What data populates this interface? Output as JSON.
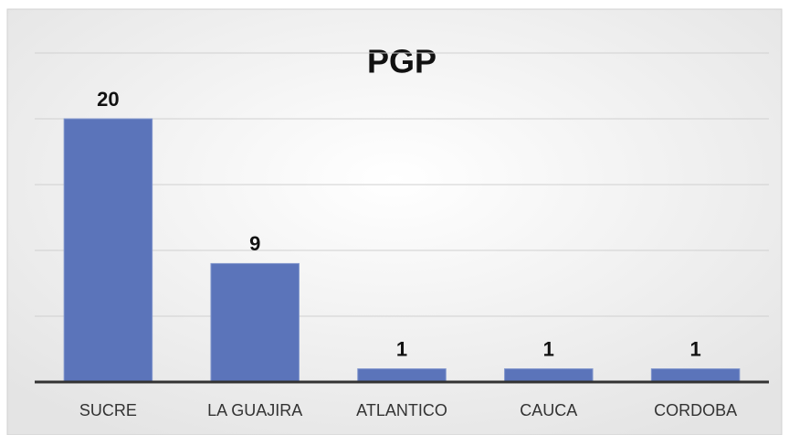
{
  "chart_data": {
    "type": "bar",
    "title": "PGP",
    "categories": [
      "SUCRE",
      "LA GUAJIRA",
      "ATLANTICO",
      "CAUCA",
      "CORDOBA"
    ],
    "values": [
      20,
      9,
      1,
      1,
      1
    ],
    "color": "#5b74ba",
    "ylim": [
      0,
      25
    ],
    "yticks": [
      0,
      5,
      10,
      15,
      20,
      25
    ],
    "grid": true
  }
}
